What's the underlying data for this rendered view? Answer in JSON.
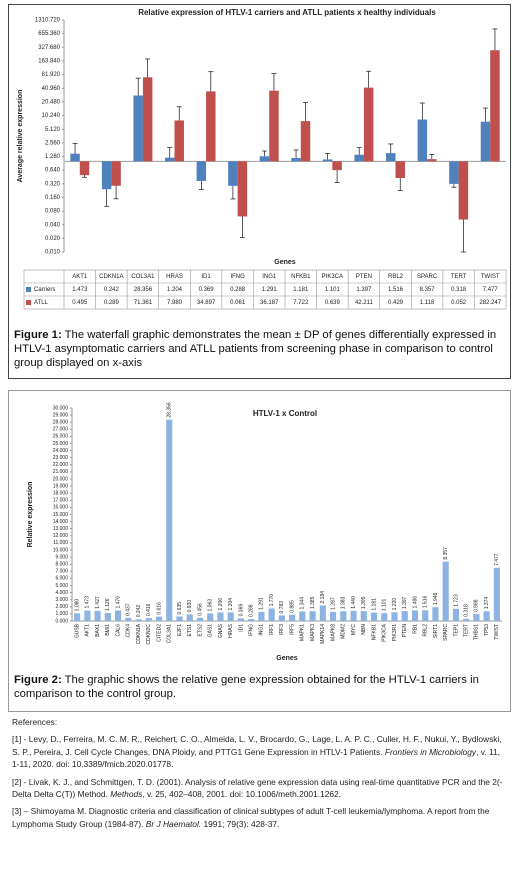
{
  "chart_data": [
    {
      "type": "bar",
      "title": "Relative expression of HTLV-1 carriers and ATLL patients x healthy individuals",
      "y_label": "Average relative expression",
      "x_label": "Genes",
      "log_scale": true,
      "data_table": true,
      "categories": [
        "AKT1",
        "CDKN1A",
        "COL3A1",
        "HRAS",
        "ID1",
        "IFNG",
        "ING1",
        "NFKB1",
        "PIK3CA",
        "PTEN",
        "RBL2",
        "SPARC",
        "TERT",
        "TWIST"
      ],
      "series": [
        {
          "name": "Carriers",
          "color": "#4f81bd",
          "values": [
            1.473,
            0.242,
            28.356,
            1.204,
            0.369,
            0.288,
            1.291,
            1.181,
            1.101,
            1.397,
            1.516,
            8.357,
            0.318,
            7.477
          ],
          "value_labels": [
            "1.473",
            "0.242",
            "28.356",
            "1.204",
            "0.369",
            "0.288",
            "1.291",
            "1.181",
            "1.101",
            "1.397",
            "1.516",
            "8.357",
            "0.318",
            "7.477"
          ],
          "errors": [
            1.0,
            0.14,
            40,
            0.8,
            0.13,
            0.14,
            0.4,
            0.6,
            0.4,
            0.6,
            0.9,
            11,
            0.05,
            7.5
          ]
        },
        {
          "name": "ATLL",
          "color": "#c0504d",
          "values": [
            0.495,
            0.289,
            71.361,
            7.98,
            34.897,
            0.061,
            36.187,
            7.722,
            0.639,
            42.211,
            0.429,
            1.118,
            0.052,
            282.247
          ],
          "value_labels": [
            "0.495",
            "0.289",
            "71.361",
            "7.980",
            "34.897",
            "0.061",
            "36.187",
            "7.722",
            "0.639",
            "42.211",
            "0.429",
            "1.118",
            "0.052",
            "282.247"
          ],
          "errors": [
            0.05,
            0.14,
            110,
            8,
            60,
            0.04,
            50,
            12,
            0.3,
            55,
            0.2,
            0.3,
            0.045,
            550
          ]
        }
      ],
      "ylim": [
        0.01,
        1310.72
      ],
      "yticks": [
        {
          "value": 0.01,
          "label": "0.010"
        },
        {
          "value": 0.02,
          "label": "0.020"
        },
        {
          "value": 0.04,
          "label": "0.040"
        },
        {
          "value": 0.08,
          "label": "0.080"
        },
        {
          "value": 0.16,
          "label": "0.160"
        },
        {
          "value": 0.32,
          "label": "0.320"
        },
        {
          "value": 0.64,
          "label": "0.640"
        },
        {
          "value": 1.28,
          "label": "1.280"
        },
        {
          "value": 2.56,
          "label": "2.560"
        },
        {
          "value": 5.12,
          "label": "5.120"
        },
        {
          "value": 10.24,
          "label": "10.240"
        },
        {
          "value": 20.48,
          "label": "20.480"
        },
        {
          "value": 40.96,
          "label": "40.960"
        },
        {
          "value": 81.92,
          "label": "81.920"
        },
        {
          "value": 163.84,
          "label": "163.840"
        },
        {
          "value": 327.68,
          "label": "327.680"
        },
        {
          "value": 655.36,
          "label": "655.360"
        },
        {
          "value": 1310.72,
          "label": "1310.720"
        }
      ]
    },
    {
      "type": "bar",
      "title": "HTLV-1 x Control",
      "y_label": "Relative expression",
      "x_label": "Genes",
      "data_labels": true,
      "color": "#8db3e2",
      "categories": [
        "GUSB",
        "AKT1",
        "BAX1",
        "BMI1",
        "CAL6",
        "CDK4",
        "CDKN1A",
        "CDKN2C",
        "CITED2",
        "COL3A1",
        "E2F1",
        "ETS1",
        "ETS2",
        "GAS1",
        "GNAS",
        "HRAS",
        "ID1",
        "IFNG",
        "ING1",
        "IRF1",
        "IRF3",
        "IRF5",
        "MAPK1",
        "MAPK3",
        "MAPK14",
        "MAPK8",
        "MDM2",
        "MYC",
        "NBN",
        "NFKB1",
        "PIK3CA",
        "PIK3R1",
        "PTEN",
        "RB1",
        "RBL2",
        "SIRT1",
        "SPARC",
        "TEP1",
        "TERT",
        "THBS1",
        "TP53",
        "TWIST"
      ],
      "values": [
        1.08,
        1.473,
        1.427,
        1.126,
        1.476,
        0.437,
        0.242,
        0.416,
        0.616,
        28.356,
        0.635,
        0.93,
        0.456,
        1.063,
        1.206,
        1.204,
        0.369,
        0.288,
        1.291,
        1.77,
        0.783,
        0.885,
        1.344,
        1.385,
        2.184,
        1.287,
        1.383,
        1.44,
        1.395,
        1.181,
        1.101,
        1.22,
        1.397,
        1.486,
        1.516,
        1.948,
        8.357,
        1.723,
        0.318,
        0.988,
        1.374,
        7.477
      ],
      "value_labels": [
        "1.080",
        "1.473",
        "1.427",
        "1.126",
        "1.476",
        "0.437",
        "0.242",
        "0.416",
        "0.616",
        "28.356",
        "0.635",
        "0.930",
        "0.456",
        "1.063",
        "1.206",
        "1.204",
        "0.369",
        "0.288",
        "1.291",
        "1.770",
        "0.783",
        "0.885",
        "1.344",
        "1.385",
        "2.184",
        "1.287",
        "1.383",
        "1.440",
        "1.395",
        "1.181",
        "1.101",
        "1.220",
        "1.397",
        "1.486",
        "1.516",
        "1.948",
        "8.357",
        "1.723",
        "0.318",
        "0.988",
        "1.374",
        "7.477"
      ],
      "ylim": [
        0,
        30
      ],
      "yticks": [
        {
          "value": 0,
          "label": "0.000"
        },
        {
          "value": 1,
          "label": "1.000"
        },
        {
          "value": 2,
          "label": "2.000"
        },
        {
          "value": 3,
          "label": "3.000"
        },
        {
          "value": 4,
          "label": "4.000"
        },
        {
          "value": 5,
          "label": "5.000"
        },
        {
          "value": 6,
          "label": "6.000"
        },
        {
          "value": 7,
          "label": "7.000"
        },
        {
          "value": 8,
          "label": "8.000"
        },
        {
          "value": 9,
          "label": "9.000"
        },
        {
          "value": 10,
          "label": "10.000"
        },
        {
          "value": 11,
          "label": "11.000"
        },
        {
          "value": 12,
          "label": "12.000"
        },
        {
          "value": 13,
          "label": "13.000"
        },
        {
          "value": 14,
          "label": "14.000"
        },
        {
          "value": 15,
          "label": "15.000"
        },
        {
          "value": 16,
          "label": "16.000"
        },
        {
          "value": 17,
          "label": "17.000"
        },
        {
          "value": 18,
          "label": "18.000"
        },
        {
          "value": 19,
          "label": "19.000"
        },
        {
          "value": 20,
          "label": "20.000"
        },
        {
          "value": 21,
          "label": "21.000"
        },
        {
          "value": 22,
          "label": "22.000"
        },
        {
          "value": 23,
          "label": "23.000"
        },
        {
          "value": 24,
          "label": "24.000"
        },
        {
          "value": 25,
          "label": "25.000"
        },
        {
          "value": 26,
          "label": "26.000"
        },
        {
          "value": 27,
          "label": "27.000"
        },
        {
          "value": 28,
          "label": "28.000"
        },
        {
          "value": 29,
          "label": "29.000"
        },
        {
          "value": 30,
          "label": "30.000"
        }
      ]
    }
  ],
  "captions": [
    {
      "label": "Figure 1:",
      "text": " The waterfall graphic demonstrates the mean ± DP of genes differentially expressed in HTLV-1 asymptomatic carriers and ATLL patients from screening phase in comparison to control group displayed on x-axis"
    },
    {
      "label": "Figure 2:",
      "text": " The graphic shows the relative gene expression obtained for the HTLV-1 carriers in comparison to the control group."
    }
  ],
  "references": {
    "heading": "References:",
    "items": [
      {
        "lead": "[1] - Levy, D., Ferreira, M. C. M. R., Reichert, C. O., Almeida, L. V., Brocardo, G., Lage, L. A. P. C., Culler, H. F., Nukui, Y., Bydlowski, S. P., Pereira, J. Cell Cycle Changes, DNA Ploidy, and PTTG1 Gene Expression in HTLV-1 Patients. ",
        "journal": "Frontiers in Microbiology",
        "tail": ", v. 11, 1-11, 2020. doi: 10.3389/fmicb.2020.01778."
      },
      {
        "lead": "[2] - Livak, K. J., and Schmittgen, T. D. (2001). Analysis of relative gene expression data using real-time quantitative PCR and the 2(-Delta Delta C(T)) Method. ",
        "journal": "Methods",
        "tail": ", v. 25, 402–408, 2001. doi: 10.1006/meth.2001.1262."
      },
      {
        "lead": "[3] – Shimoyama M. Diagnostic criteria and classification of clinical subtypes of adult T-cell leukemia/lymphoma. A report from the Lymphoma Study Group (1984-87). ",
        "journal": "Br J Haematol.",
        "tail": " 1991; 79(3): 428-37."
      }
    ]
  }
}
